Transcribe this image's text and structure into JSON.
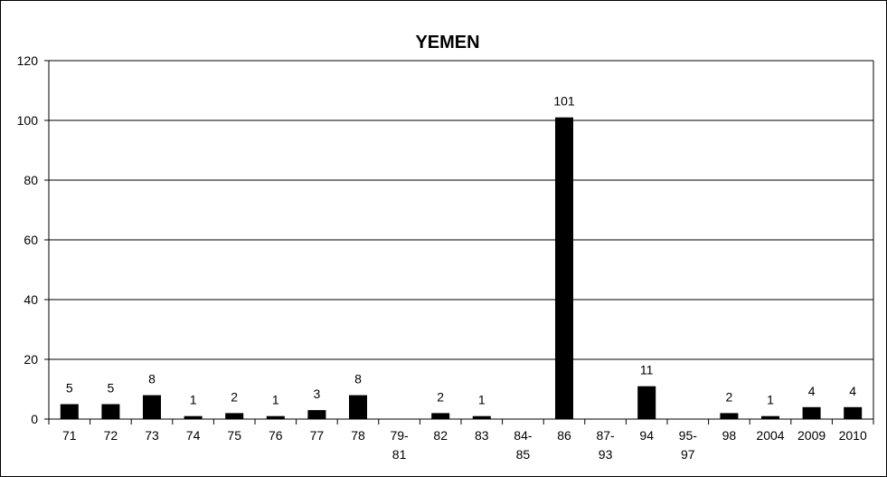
{
  "chart_data": {
    "type": "bar",
    "title": "YEMEN",
    "xlabel": "",
    "ylabel": "",
    "categories": [
      [
        "71"
      ],
      [
        "72"
      ],
      [
        "73"
      ],
      [
        "74"
      ],
      [
        "75"
      ],
      [
        "76"
      ],
      [
        "77"
      ],
      [
        "78"
      ],
      [
        "79-",
        "81"
      ],
      [
        "82"
      ],
      [
        "83"
      ],
      [
        "84-",
        "85"
      ],
      [
        "86"
      ],
      [
        "87-",
        "93"
      ],
      [
        "94"
      ],
      [
        "95-",
        "97"
      ],
      [
        "98"
      ],
      [
        "2004"
      ],
      [
        "2009"
      ],
      [
        "2010"
      ]
    ],
    "values": [
      5,
      5,
      8,
      1,
      2,
      1,
      3,
      8,
      0,
      2,
      1,
      0,
      101,
      0,
      11,
      0,
      2,
      1,
      4,
      4
    ],
    "data_labels": [
      "5",
      "5",
      "8",
      "1",
      "2",
      "1",
      "3",
      "8",
      "",
      "2",
      "1",
      "",
      "101",
      "",
      "11",
      "",
      "2",
      "1",
      "4",
      "4"
    ],
    "ylim": [
      0,
      120
    ],
    "yticks": [
      "0",
      "20",
      "40",
      "60",
      "80",
      "100",
      "120"
    ],
    "grid": true,
    "legend": "none",
    "bar_color": "#000000",
    "grid_color": "#000000",
    "background": "#ffffff"
  }
}
